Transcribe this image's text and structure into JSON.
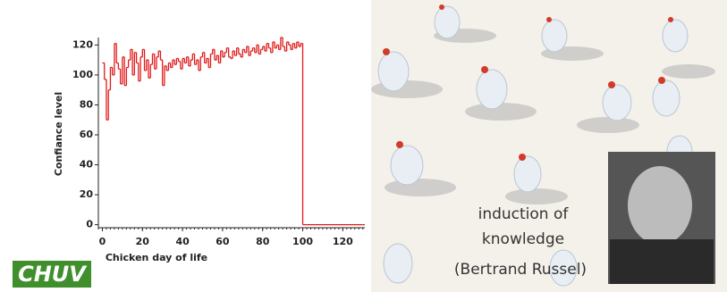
{
  "chart_data": {
    "type": "step",
    "xlabel": "Chicken day of life",
    "ylabel": "Confiance level",
    "color": "#e01b1b",
    "x": [
      0,
      1,
      2,
      3,
      4,
      5,
      6,
      7,
      8,
      9,
      10,
      11,
      12,
      13,
      14,
      15,
      16,
      17,
      18,
      19,
      20,
      21,
      22,
      23,
      24,
      25,
      26,
      27,
      28,
      29,
      30,
      31,
      32,
      33,
      34,
      35,
      36,
      37,
      38,
      39,
      40,
      41,
      42,
      43,
      44,
      45,
      46,
      47,
      48,
      49,
      50,
      51,
      52,
      53,
      54,
      55,
      56,
      57,
      58,
      59,
      60,
      61,
      62,
      63,
      64,
      65,
      66,
      67,
      68,
      69,
      70,
      71,
      72,
      73,
      74,
      75,
      76,
      77,
      78,
      79,
      80,
      81,
      82,
      83,
      84,
      85,
      86,
      87,
      88,
      89,
      90,
      91,
      92,
      93,
      94,
      95,
      96,
      97,
      98,
      99,
      100,
      130
    ],
    "values": [
      108,
      97,
      70,
      90,
      105,
      100,
      121,
      108,
      104,
      94,
      112,
      93,
      105,
      110,
      117,
      100,
      115,
      108,
      96,
      112,
      117,
      103,
      110,
      98,
      107,
      114,
      104,
      112,
      116,
      110,
      93,
      106,
      103,
      108,
      105,
      110,
      107,
      111,
      109,
      104,
      111,
      108,
      112,
      106,
      110,
      114,
      107,
      110,
      103,
      112,
      115,
      108,
      111,
      105,
      114,
      117,
      110,
      113,
      108,
      116,
      112,
      115,
      118,
      112,
      111,
      116,
      113,
      118,
      114,
      112,
      117,
      115,
      119,
      113,
      116,
      118,
      115,
      120,
      114,
      117,
      119,
      116,
      121,
      118,
      115,
      122,
      118,
      120,
      117,
      125,
      119,
      116,
      122,
      120,
      117,
      121,
      118,
      122,
      119,
      121,
      0,
      0
    ],
    "xlim": [
      -2,
      131
    ],
    "ylim": [
      -2,
      125
    ],
    "xticks": [
      0,
      20,
      40,
      60,
      80,
      100,
      120
    ],
    "yticks": [
      0,
      20,
      40,
      60,
      80,
      100,
      120
    ]
  },
  "caption": {
    "line1": "induction of",
    "line2": "knowledge",
    "author": "(Bertrand Russel)"
  },
  "logo": "CHUV"
}
